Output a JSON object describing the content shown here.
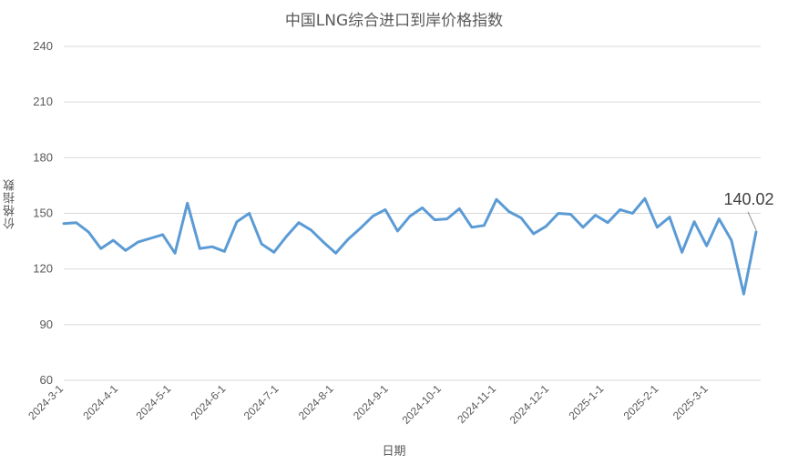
{
  "chart_data": {
    "type": "line",
    "title": "中国LNG综合进口到岸价格指数",
    "xlabel": "日期",
    "ylabel": "价格指数",
    "ylim": [
      60,
      240
    ],
    "yticks": [
      60,
      90,
      120,
      150,
      180,
      210,
      240
    ],
    "grid": true,
    "legend": "none",
    "line_color": "#5b9bd5",
    "x_tick_labels": [
      "2024-3-1",
      "2024-4-1",
      "2024-5-1",
      "2024-6-1",
      "2024-7-1",
      "2024-8-1",
      "2024-9-1",
      "2024-10-1",
      "2024-11-1",
      "2024-12-1",
      "2025-1-1",
      "2025-2-1",
      "2025-3-1"
    ],
    "x": [
      "2024-3-1",
      "2024-3-8",
      "2024-3-15",
      "2024-3-22",
      "2024-3-29",
      "2024-4-5",
      "2024-4-12",
      "2024-4-19",
      "2024-4-26",
      "2024-5-3",
      "2024-5-10",
      "2024-5-17",
      "2024-5-24",
      "2024-5-31",
      "2024-6-7",
      "2024-6-14",
      "2024-6-21",
      "2024-6-28",
      "2024-7-5",
      "2024-7-12",
      "2024-7-19",
      "2024-7-26",
      "2024-8-2",
      "2024-8-9",
      "2024-8-16",
      "2024-8-23",
      "2024-8-30",
      "2024-9-6",
      "2024-9-13",
      "2024-9-20",
      "2024-9-27",
      "2024-10-4",
      "2024-10-11",
      "2024-10-18",
      "2024-10-25",
      "2024-11-1",
      "2024-11-8",
      "2024-11-15",
      "2024-11-22",
      "2024-11-29",
      "2024-12-6",
      "2024-12-13",
      "2024-12-20",
      "2024-12-27",
      "2025-1-3",
      "2025-1-10",
      "2025-1-17",
      "2025-1-24",
      "2025-1-31",
      "2025-2-7",
      "2025-2-14",
      "2025-2-21",
      "2025-2-28",
      "2025-3-7",
      "2025-3-14",
      "2025-3-21",
      "2025-3-28"
    ],
    "series": [
      {
        "values": [
          144.5,
          145,
          140,
          131,
          135.5,
          130,
          134.5,
          136.5,
          138.5,
          128.5,
          155.5,
          131,
          132,
          129.5,
          145.5,
          150,
          133.5,
          129,
          137.5,
          145,
          141,
          134.5,
          128.5,
          136,
          142,
          148.5,
          152,
          140.5,
          148.5,
          153,
          146.5,
          147,
          152.5,
          142.5,
          143.5,
          157.5,
          151,
          147.5,
          139,
          143,
          150,
          149.5,
          142.5,
          149,
          145,
          152,
          150,
          158,
          142.5,
          148,
          129,
          145.5,
          132.5,
          147,
          135.5,
          106.5,
          140.02
        ]
      }
    ],
    "annotation": {
      "text": "140.02",
      "value": 140.02
    }
  }
}
